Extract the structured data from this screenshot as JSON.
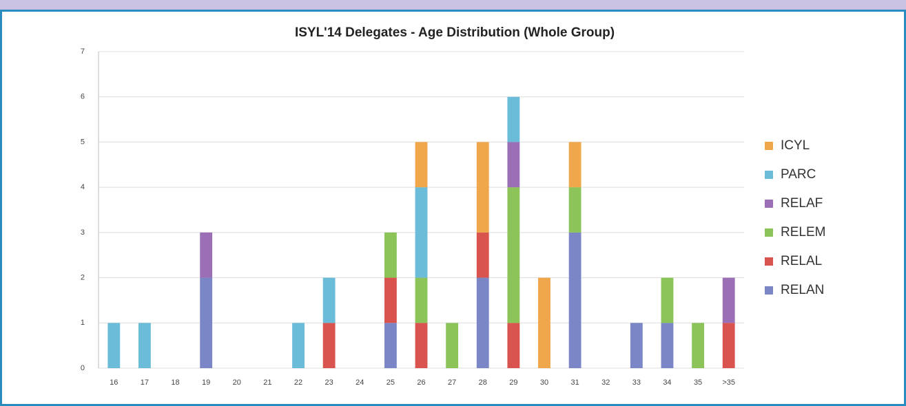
{
  "chart_data": {
    "type": "stacked-bar",
    "title": "ISYL'14 Delegates - Age Distribution (Whole Group)",
    "categories": [
      "16",
      "17",
      "18",
      "19",
      "20",
      "21",
      "22",
      "23",
      "24",
      "25",
      "26",
      "27",
      "28",
      "29",
      "30",
      "31",
      "32",
      "33",
      "34",
      "35",
      ">35"
    ],
    "series": [
      {
        "name": "RELAN",
        "color": "#7b86c6",
        "values": [
          0,
          0,
          0,
          2,
          0,
          0,
          0,
          0,
          0,
          1,
          0,
          0,
          2,
          0,
          0,
          3,
          0,
          1,
          1,
          0,
          0
        ]
      },
      {
        "name": "RELAL",
        "color": "#d9534f",
        "values": [
          0,
          0,
          0,
          0,
          0,
          0,
          0,
          1,
          0,
          1,
          1,
          0,
          1,
          1,
          0,
          0,
          0,
          0,
          0,
          0,
          1
        ]
      },
      {
        "name": "RELEM",
        "color": "#8cc45a",
        "values": [
          0,
          0,
          0,
          0,
          0,
          0,
          0,
          0,
          0,
          1,
          1,
          1,
          0,
          3,
          0,
          1,
          0,
          0,
          1,
          1,
          0
        ]
      },
      {
        "name": "RELAF",
        "color": "#9a6fb5",
        "values": [
          0,
          0,
          0,
          1,
          0,
          0,
          0,
          0,
          0,
          0,
          0,
          0,
          0,
          1,
          0,
          0,
          0,
          0,
          0,
          0,
          1
        ]
      },
      {
        "name": "PARC",
        "color": "#6bbcd8",
        "values": [
          1,
          1,
          0,
          0,
          0,
          0,
          1,
          1,
          0,
          0,
          2,
          0,
          0,
          1,
          0,
          0,
          0,
          0,
          0,
          0,
          0
        ]
      },
      {
        "name": "ICYL",
        "color": "#f0a64a",
        "values": [
          0,
          0,
          0,
          0,
          0,
          0,
          0,
          0,
          0,
          0,
          1,
          0,
          2,
          0,
          2,
          1,
          0,
          0,
          0,
          0,
          0
        ]
      }
    ],
    "ylim": [
      0,
      7
    ],
    "yticks": [
      0,
      1,
      2,
      3,
      4,
      5,
      6,
      7
    ],
    "grid": true,
    "legend": "right"
  }
}
